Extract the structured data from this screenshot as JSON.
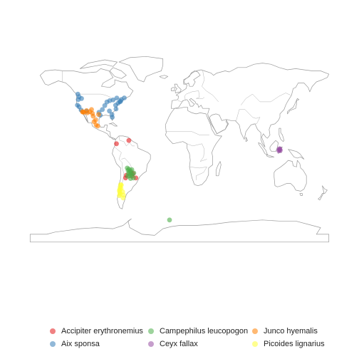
{
  "map": {
    "background": "#ffffff",
    "land_stroke": "#9a9a9a",
    "point_opacity": 0.6
  },
  "legend": {
    "items": [
      {
        "label": "Accipiter erythronemius",
        "color": "#e41a1c"
      },
      {
        "label": "Aix sponsa",
        "color": "#377eb8"
      },
      {
        "label": "Campephilus leucopogon",
        "color": "#4daf4a"
      },
      {
        "label": "Ceyx fallax",
        "color": "#984ea3"
      },
      {
        "label": "Junco hyemalis",
        "color": "#ff7f00"
      },
      {
        "label": "Picoides lignarius",
        "color": "#ffff33"
      }
    ]
  },
  "occurrences": [
    {
      "species": "Aix sponsa",
      "lon": -122.5,
      "lat": 49.0
    },
    {
      "species": "Aix sponsa",
      "lon": -121.0,
      "lat": 46.5
    },
    {
      "species": "Aix sponsa",
      "lon": -122.0,
      "lat": 44.0
    },
    {
      "species": "Aix sponsa",
      "lon": -118.0,
      "lat": 45.0
    },
    {
      "species": "Aix sponsa",
      "lon": -123.0,
      "lat": 39.0
    },
    {
      "species": "Aix sponsa",
      "lon": -121.0,
      "lat": 37.5
    },
    {
      "species": "Aix sponsa",
      "lon": -118.5,
      "lat": 34.5
    },
    {
      "species": "Aix sponsa",
      "lon": -112.0,
      "lat": 33.5
    },
    {
      "species": "Aix sponsa",
      "lon": -97.0,
      "lat": 32.5
    },
    {
      "species": "Aix sponsa",
      "lon": -95.5,
      "lat": 29.8
    },
    {
      "species": "Aix sponsa",
      "lon": -93.0,
      "lat": 35.0
    },
    {
      "species": "Aix sponsa",
      "lon": -90.0,
      "lat": 38.6
    },
    {
      "species": "Aix sponsa",
      "lon": -87.5,
      "lat": 41.8
    },
    {
      "species": "Aix sponsa",
      "lon": -84.0,
      "lat": 43.0
    },
    {
      "species": "Aix sponsa",
      "lon": -80.0,
      "lat": 43.7
    },
    {
      "species": "Aix sponsa",
      "lon": -77.0,
      "lat": 39.0
    },
    {
      "species": "Aix sponsa",
      "lon": -74.0,
      "lat": 40.7
    },
    {
      "species": "Aix sponsa",
      "lon": -72.0,
      "lat": 42.0
    },
    {
      "species": "Aix sponsa",
      "lon": -71.0,
      "lat": 42.4
    },
    {
      "species": "Aix sponsa",
      "lon": -76.5,
      "lat": 35.5
    },
    {
      "species": "Aix sponsa",
      "lon": -81.5,
      "lat": 30.5
    },
    {
      "species": "Aix sponsa",
      "lon": -81.0,
      "lat": 28.0
    },
    {
      "species": "Aix sponsa",
      "lon": -84.5,
      "lat": 33.7
    },
    {
      "species": "Aix sponsa",
      "lon": -66.5,
      "lat": 45.5
    },
    {
      "species": "Aix sponsa",
      "lon": -75.5,
      "lat": 45.4
    },
    {
      "species": "Aix sponsa",
      "lon": -70.0,
      "lat": 44.0
    },
    {
      "species": "Junco hyemalis",
      "lon": -117.0,
      "lat": 33.0
    },
    {
      "species": "Junco hyemalis",
      "lon": -116.5,
      "lat": 32.7
    },
    {
      "species": "Junco hyemalis",
      "lon": -115.0,
      "lat": 32.5
    },
    {
      "species": "Junco hyemalis",
      "lon": -112.0,
      "lat": 34.0
    },
    {
      "species": "Junco hyemalis",
      "lon": -111.0,
      "lat": 32.0
    },
    {
      "species": "Junco hyemalis",
      "lon": -108.0,
      "lat": 33.0
    },
    {
      "species": "Junco hyemalis",
      "lon": -106.0,
      "lat": 35.0
    },
    {
      "species": "Junco hyemalis",
      "lon": -105.0,
      "lat": 31.5
    },
    {
      "species": "Junco hyemalis",
      "lon": -104.0,
      "lat": 29.0
    },
    {
      "species": "Junco hyemalis",
      "lon": -103.0,
      "lat": 24.0
    },
    {
      "species": "Junco hyemalis",
      "lon": -101.0,
      "lat": 25.5
    },
    {
      "species": "Junco hyemalis",
      "lon": -100.5,
      "lat": 21.0
    },
    {
      "species": "Junco hyemalis",
      "lon": -98.5,
      "lat": 20.0
    },
    {
      "species": "Junco hyemalis",
      "lon": -97.5,
      "lat": 30.5
    },
    {
      "species": "Accipiter erythronemius",
      "lon": -76.0,
      "lat": 4.0
    },
    {
      "species": "Accipiter erythronemius",
      "lon": -61.0,
      "lat": 7.0
    },
    {
      "species": "Accipiter erythronemius",
      "lon": -56.0,
      "lat": -23.0
    },
    {
      "species": "Accipiter erythronemius",
      "lon": -58.5,
      "lat": -22.0
    },
    {
      "species": "Accipiter erythronemius",
      "lon": -64.0,
      "lat": -24.5
    },
    {
      "species": "Accipiter erythronemius",
      "lon": -65.0,
      "lat": -27.0
    },
    {
      "species": "Accipiter erythronemius",
      "lon": -52.5,
      "lat": -27.0
    },
    {
      "species": "Accipiter erythronemius",
      "lon": -57.5,
      "lat": -25.3
    },
    {
      "species": "Campephilus leucopogon",
      "lon": -63.0,
      "lat": -18.0
    },
    {
      "species": "Campephilus leucopogon",
      "lon": -62.0,
      "lat": -20.0
    },
    {
      "species": "Campephilus leucopogon",
      "lon": -60.5,
      "lat": -21.5
    },
    {
      "species": "Campephilus leucopogon",
      "lon": -59.0,
      "lat": -20.5
    },
    {
      "species": "Campephilus leucopogon",
      "lon": -61.5,
      "lat": -23.0
    },
    {
      "species": "Campephilus leucopogon",
      "lon": -58.5,
      "lat": -23.5
    },
    {
      "species": "Campephilus leucopogon",
      "lon": -60.0,
      "lat": -25.0
    },
    {
      "species": "Campephilus leucopogon",
      "lon": -57.0,
      "lat": -24.0
    },
    {
      "species": "Campephilus leucopogon",
      "lon": -55.0,
      "lat": -22.5
    },
    {
      "species": "Campephilus leucopogon",
      "lon": -62.5,
      "lat": -25.5
    },
    {
      "species": "Campephilus leucopogon",
      "lon": -59.0,
      "lat": -27.5
    },
    {
      "species": "Campephilus leucopogon",
      "lon": -55.5,
      "lat": -27.0
    },
    {
      "species": "Campephilus leucopogon",
      "lon": -61.0,
      "lat": -19.0
    },
    {
      "species": "Campephilus leucopogon",
      "lon": -57.5,
      "lat": -19.5
    },
    {
      "species": "Campephilus leucopogon",
      "lon": -12.0,
      "lat": -65.0
    },
    {
      "species": "Picoides lignarius",
      "lon": -71.0,
      "lat": -33.0
    },
    {
      "species": "Picoides lignarius",
      "lon": -71.5,
      "lat": -35.0
    },
    {
      "species": "Picoides lignarius",
      "lon": -72.0,
      "lat": -37.0
    },
    {
      "species": "Picoides lignarius",
      "lon": -72.5,
      "lat": -38.5
    },
    {
      "species": "Picoides lignarius",
      "lon": -72.0,
      "lat": -40.0
    },
    {
      "species": "Picoides lignarius",
      "lon": -71.5,
      "lat": -41.5
    },
    {
      "species": "Picoides lignarius",
      "lon": -72.5,
      "lat": -43.0
    },
    {
      "species": "Picoides lignarius",
      "lon": -70.5,
      "lat": -36.5
    },
    {
      "species": "Picoides lignarius",
      "lon": -68.5,
      "lat": -39.5
    },
    {
      "species": "Picoides lignarius",
      "lon": -67.5,
      "lat": -42.5
    },
    {
      "species": "Picoides lignarius",
      "lon": -68.0,
      "lat": -45.0
    },
    {
      "species": "Picoides lignarius",
      "lon": -70.0,
      "lat": -33.5
    },
    {
      "species": "Ceyx fallax",
      "lon": 120.0,
      "lat": -1.5
    },
    {
      "species": "Ceyx fallax",
      "lon": 121.0,
      "lat": -1.0
    },
    {
      "species": "Ceyx fallax",
      "lon": 121.5,
      "lat": -2.0
    },
    {
      "species": "Ceyx fallax",
      "lon": 120.5,
      "lat": -0.5
    },
    {
      "species": "Ceyx fallax",
      "lon": 119.8,
      "lat": -2.5
    }
  ]
}
